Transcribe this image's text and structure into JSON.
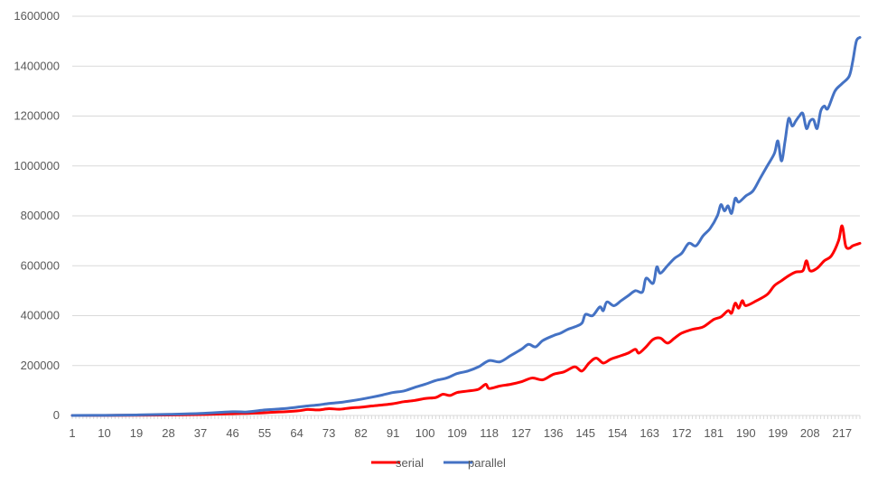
{
  "chart_data": {
    "type": "line",
    "title": "",
    "xlabel": "",
    "ylabel": "",
    "x_range": [
      1,
      222
    ],
    "ylim": [
      0,
      1600000
    ],
    "y_ticks": [
      0,
      200000,
      400000,
      600000,
      800000,
      1000000,
      1200000,
      1400000,
      1600000
    ],
    "y_tick_labels": [
      "0",
      "200000",
      "400000",
      "600000",
      "800000",
      "1000000",
      "1200000",
      "1400000",
      "1600000"
    ],
    "x_ticks": [
      1,
      10,
      19,
      28,
      37,
      46,
      55,
      64,
      73,
      82,
      91,
      100,
      109,
      118,
      127,
      136,
      145,
      154,
      163,
      172,
      181,
      190,
      199,
      208,
      217
    ],
    "x_tick_labels": [
      "1",
      "10",
      "19",
      "28",
      "37",
      "46",
      "55",
      "64",
      "73",
      "82",
      "91",
      "100",
      "109",
      "118",
      "127",
      "136",
      "145",
      "154",
      "163",
      "172",
      "181",
      "190",
      "199",
      "208",
      "217"
    ],
    "grid": "horizontal",
    "legend": "bottom",
    "series": [
      {
        "name": "serial",
        "color": "#ff0000",
        "points": [
          [
            1,
            0
          ],
          [
            10,
            200
          ],
          [
            19,
            800
          ],
          [
            28,
            2000
          ],
          [
            37,
            3500
          ],
          [
            46,
            7000
          ],
          [
            55,
            11000
          ],
          [
            64,
            18000
          ],
          [
            67,
            24000
          ],
          [
            70,
            22000
          ],
          [
            73,
            27000
          ],
          [
            76,
            25000
          ],
          [
            79,
            30000
          ],
          [
            82,
            33000
          ],
          [
            85,
            38000
          ],
          [
            88,
            42000
          ],
          [
            91,
            47000
          ],
          [
            94,
            55000
          ],
          [
            97,
            60000
          ],
          [
            100,
            68000
          ],
          [
            103,
            72000
          ],
          [
            105,
            85000
          ],
          [
            107,
            80000
          ],
          [
            109,
            92000
          ],
          [
            112,
            98000
          ],
          [
            115,
            105000
          ],
          [
            117,
            125000
          ],
          [
            118,
            108000
          ],
          [
            121,
            118000
          ],
          [
            124,
            125000
          ],
          [
            127,
            135000
          ],
          [
            130,
            150000
          ],
          [
            133,
            143000
          ],
          [
            136,
            165000
          ],
          [
            139,
            175000
          ],
          [
            142,
            195000
          ],
          [
            144,
            178000
          ],
          [
            146,
            210000
          ],
          [
            148,
            230000
          ],
          [
            150,
            210000
          ],
          [
            152,
            225000
          ],
          [
            154,
            235000
          ],
          [
            157,
            250000
          ],
          [
            159,
            265000
          ],
          [
            160,
            250000
          ],
          [
            162,
            275000
          ],
          [
            164,
            305000
          ],
          [
            166,
            310000
          ],
          [
            168,
            290000
          ],
          [
            170,
            310000
          ],
          [
            172,
            330000
          ],
          [
            175,
            345000
          ],
          [
            178,
            355000
          ],
          [
            181,
            385000
          ],
          [
            183,
            395000
          ],
          [
            185,
            420000
          ],
          [
            186,
            410000
          ],
          [
            187,
            450000
          ],
          [
            188,
            430000
          ],
          [
            189,
            460000
          ],
          [
            190,
            440000
          ],
          [
            193,
            460000
          ],
          [
            196,
            485000
          ],
          [
            198,
            520000
          ],
          [
            200,
            540000
          ],
          [
            202,
            560000
          ],
          [
            204,
            575000
          ],
          [
            206,
            580000
          ],
          [
            207,
            620000
          ],
          [
            208,
            580000
          ],
          [
            210,
            590000
          ],
          [
            212,
            620000
          ],
          [
            214,
            640000
          ],
          [
            216,
            700000
          ],
          [
            217,
            760000
          ],
          [
            218,
            680000
          ],
          [
            219,
            670000
          ],
          [
            220,
            680000
          ],
          [
            222,
            690000
          ]
        ]
      },
      {
        "name": "parallel",
        "color": "#4472c4",
        "points": [
          [
            1,
            0
          ],
          [
            10,
            500
          ],
          [
            19,
            2000
          ],
          [
            28,
            4500
          ],
          [
            37,
            8000
          ],
          [
            46,
            15000
          ],
          [
            50,
            14000
          ],
          [
            55,
            22000
          ],
          [
            58,
            25000
          ],
          [
            61,
            28000
          ],
          [
            64,
            33000
          ],
          [
            67,
            38000
          ],
          [
            70,
            42000
          ],
          [
            73,
            48000
          ],
          [
            76,
            52000
          ],
          [
            79,
            58000
          ],
          [
            82,
            65000
          ],
          [
            85,
            73000
          ],
          [
            88,
            82000
          ],
          [
            91,
            92000
          ],
          [
            94,
            98000
          ],
          [
            97,
            112000
          ],
          [
            100,
            125000
          ],
          [
            103,
            140000
          ],
          [
            106,
            150000
          ],
          [
            109,
            168000
          ],
          [
            112,
            178000
          ],
          [
            115,
            195000
          ],
          [
            118,
            220000
          ],
          [
            121,
            215000
          ],
          [
            124,
            240000
          ],
          [
            127,
            265000
          ],
          [
            129,
            285000
          ],
          [
            131,
            275000
          ],
          [
            133,
            300000
          ],
          [
            136,
            320000
          ],
          [
            138,
            330000
          ],
          [
            140,
            345000
          ],
          [
            142,
            355000
          ],
          [
            144,
            370000
          ],
          [
            145,
            405000
          ],
          [
            147,
            400000
          ],
          [
            149,
            435000
          ],
          [
            150,
            420000
          ],
          [
            151,
            455000
          ],
          [
            153,
            440000
          ],
          [
            155,
            460000
          ],
          [
            157,
            480000
          ],
          [
            159,
            500000
          ],
          [
            161,
            495000
          ],
          [
            162,
            550000
          ],
          [
            164,
            530000
          ],
          [
            165,
            595000
          ],
          [
            166,
            570000
          ],
          [
            168,
            600000
          ],
          [
            170,
            630000
          ],
          [
            172,
            650000
          ],
          [
            174,
            690000
          ],
          [
            176,
            680000
          ],
          [
            178,
            720000
          ],
          [
            180,
            750000
          ],
          [
            182,
            800000
          ],
          [
            183,
            845000
          ],
          [
            184,
            820000
          ],
          [
            185,
            840000
          ],
          [
            186,
            810000
          ],
          [
            187,
            870000
          ],
          [
            188,
            855000
          ],
          [
            190,
            880000
          ],
          [
            192,
            900000
          ],
          [
            194,
            950000
          ],
          [
            196,
            1000000
          ],
          [
            198,
            1050000
          ],
          [
            199,
            1100000
          ],
          [
            200,
            1020000
          ],
          [
            201,
            1100000
          ],
          [
            202,
            1190000
          ],
          [
            203,
            1160000
          ],
          [
            204,
            1180000
          ],
          [
            205,
            1200000
          ],
          [
            206,
            1210000
          ],
          [
            207,
            1150000
          ],
          [
            208,
            1180000
          ],
          [
            209,
            1185000
          ],
          [
            210,
            1150000
          ],
          [
            211,
            1220000
          ],
          [
            212,
            1240000
          ],
          [
            213,
            1230000
          ],
          [
            215,
            1300000
          ],
          [
            217,
            1330000
          ],
          [
            219,
            1360000
          ],
          [
            220,
            1420000
          ],
          [
            221,
            1500000
          ],
          [
            222,
            1515000
          ]
        ]
      }
    ]
  }
}
